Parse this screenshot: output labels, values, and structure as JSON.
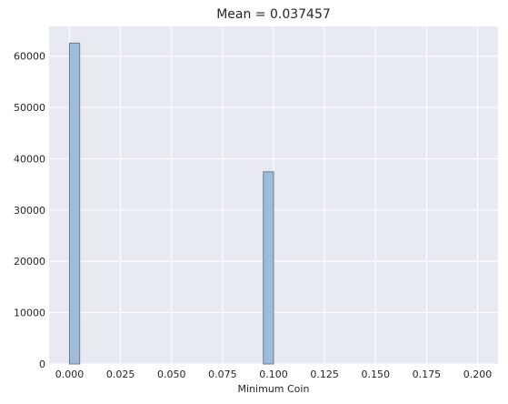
{
  "chart_data": {
    "type": "bar",
    "title": "Mean = 0.037457",
    "xlabel": "Minimum Coin",
    "ylabel": "",
    "xlim": [
      -0.01,
      0.21
    ],
    "ylim": [
      0,
      65800
    ],
    "x_ticks": [
      "0.000",
      "0.025",
      "0.050",
      "0.075",
      "0.100",
      "0.125",
      "0.150",
      "0.175",
      "0.200"
    ],
    "y_ticks": [
      "0",
      "10000",
      "20000",
      "30000",
      "40000",
      "50000",
      "60000"
    ],
    "grid": true,
    "bin_width": 0.005,
    "bins": [
      {
        "x0": 0.0,
        "x1": 0.005,
        "count": 62543
      },
      {
        "x0": 0.095,
        "x1": 0.1,
        "count": 37457
      }
    ]
  },
  "colors": {
    "plot_background": "#e9e9f1",
    "grid": "#ffffff",
    "bar_fill": "#9dbcdc",
    "bar_edge": "#6e7f91",
    "text": "#262626"
  }
}
